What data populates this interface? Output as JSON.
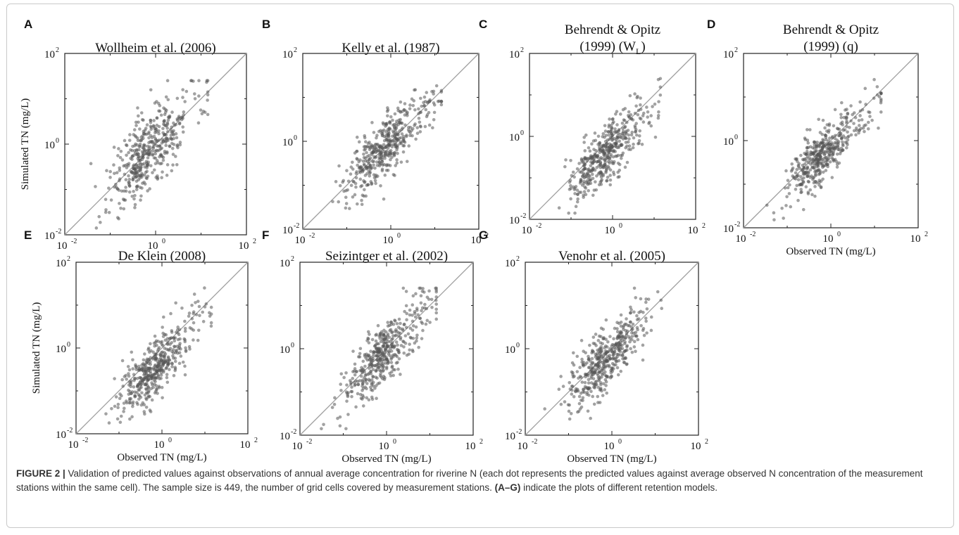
{
  "caption": {
    "label": "FIGURE 2 |",
    "text_1": " Validation of predicted values against observations of annual average concentration for riverine N (each dot represents the predicted values against average observed N concentration of the measurement stations within the same cell). The sample size is 449, the number of grid cells covered by measurement stations. ",
    "bold_range": "(A–G)",
    "text_2": " indicate the plots of different retention models."
  },
  "colors": {
    "points": "#555555",
    "reference_line": "#9e9e9e",
    "axes": "#222222"
  },
  "chart_data": [
    {
      "panel": "A",
      "type": "scatter",
      "title_lines": [
        "Wollheim et al. (2006)"
      ],
      "xlabel": "",
      "ylabel": "Simulated TN (mg/L)",
      "xscale": "log",
      "yscale": "log",
      "xlim": [
        0.01,
        100
      ],
      "ylim": [
        0.01,
        100
      ],
      "seed": 11,
      "spread": 0.42,
      "bias": 0.0,
      "reference_line": "1:1",
      "grid": false
    },
    {
      "panel": "B",
      "type": "scatter",
      "title_lines": [
        "Kelly et al. (1987)"
      ],
      "xlabel": "",
      "ylabel": "",
      "xscale": "log",
      "yscale": "log",
      "xlim": [
        0.01,
        100
      ],
      "ylim": [
        0.01,
        100
      ],
      "seed": 23,
      "spread": 0.32,
      "bias": 0.0,
      "reference_line": "1:1",
      "grid": false
    },
    {
      "panel": "C",
      "type": "scatter",
      "title_lines": [
        "Behrendt & Opitz",
        "(1999) (W_L)"
      ],
      "xlabel": "",
      "ylabel": "",
      "xscale": "log",
      "yscale": "log",
      "xlim": [
        0.01,
        100
      ],
      "ylim": [
        0.01,
        100
      ],
      "seed": 37,
      "spread": 0.36,
      "bias": -0.25,
      "reference_line": "1:1",
      "grid": false
    },
    {
      "panel": "D",
      "type": "scatter",
      "title_lines": [
        "Behrendt & Opitz",
        "(1999) (q)"
      ],
      "xlabel": "Observed TN (mg/L)",
      "ylabel": "",
      "xscale": "log",
      "yscale": "log",
      "xlim": [
        0.01,
        100
      ],
      "ylim": [
        0.01,
        100
      ],
      "seed": 41,
      "spread": 0.3,
      "bias": -0.15,
      "reference_line": "1:1",
      "grid": false
    },
    {
      "panel": "E",
      "type": "scatter",
      "title_lines": [
        "De Klein (2008)"
      ],
      "xlabel": "Observed TN (mg/L)",
      "ylabel": "Simulated TN (mg/L)",
      "xscale": "log",
      "yscale": "log",
      "xlim": [
        0.01,
        100
      ],
      "ylim": [
        0.01,
        100
      ],
      "seed": 53,
      "spread": 0.36,
      "bias": -0.3,
      "reference_line": "1:1",
      "grid": false
    },
    {
      "panel": "F",
      "type": "scatter",
      "title_lines": [
        "Seizintger et al. (2002)"
      ],
      "xlabel": "Observed TN (mg/L)",
      "ylabel": "",
      "xscale": "log",
      "yscale": "log",
      "xlim": [
        0.01,
        100
      ],
      "ylim": [
        0.01,
        100
      ],
      "seed": 67,
      "spread": 0.33,
      "bias": -0.05,
      "reference_line": "1:1",
      "grid": false
    },
    {
      "panel": "G",
      "type": "scatter",
      "title_lines": [
        "Venohr et al. (2005)"
      ],
      "xlabel": "Observed TN (mg/L)",
      "ylabel": "",
      "xscale": "log",
      "yscale": "log",
      "xlim": [
        0.01,
        100
      ],
      "ylim": [
        0.01,
        100
      ],
      "seed": 79,
      "spread": 0.33,
      "bias": -0.1,
      "reference_line": "1:1",
      "grid": false
    }
  ]
}
